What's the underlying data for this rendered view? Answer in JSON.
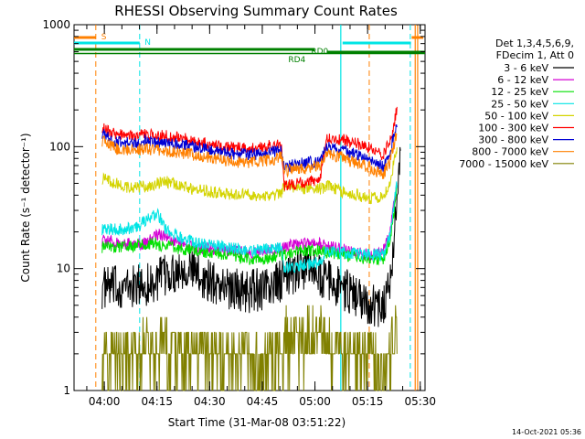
{
  "chart_data": {
    "type": "line",
    "title": "RHESSI Observing Summary Count Rates",
    "xlabel": "Start Time (31-Mar-08 03:51:22)",
    "ylabel": "Count Rate (s⁻¹ detector⁻¹)",
    "yscale": "log",
    "ylim": [
      1,
      1000
    ],
    "xlim_minutes": [
      0,
      100
    ],
    "x_ticks": [
      "04:00",
      "04:15",
      "04:30",
      "04:45",
      "05:00",
      "05:15",
      "05:30"
    ],
    "y_ticks": [
      "1",
      "10",
      "100",
      "1000"
    ],
    "legend_header": [
      "Det 1,3,4,5,6,9,",
      "FDecim 1, Att 0"
    ],
    "legend_position": "right",
    "series": [
      {
        "name": "3 - 6 keV",
        "color": "#000000",
        "points": [
          [
            8,
            7
          ],
          [
            15,
            7
          ],
          [
            22,
            7.5
          ],
          [
            27,
            9
          ],
          [
            32,
            10.5
          ],
          [
            38,
            8
          ],
          [
            44,
            7
          ],
          [
            50,
            6.5
          ],
          [
            56,
            7
          ],
          [
            62,
            9
          ],
          [
            67,
            10.5
          ],
          [
            72,
            8
          ],
          [
            78,
            6.5
          ],
          [
            84,
            5
          ],
          [
            88,
            5
          ],
          [
            90,
            8
          ],
          [
            92,
            30
          ],
          [
            93,
            120
          ]
        ]
      },
      {
        "name": "6 - 12 keV",
        "color": "#d400d4",
        "points": [
          [
            8,
            17
          ],
          [
            15,
            16
          ],
          [
            20,
            16
          ],
          [
            24,
            19
          ],
          [
            28,
            17
          ],
          [
            34,
            15
          ],
          [
            44,
            14
          ],
          [
            50,
            13.5
          ],
          [
            56,
            14
          ],
          [
            60,
            15
          ],
          [
            64,
            16
          ],
          [
            70,
            16
          ],
          [
            76,
            14.5
          ],
          [
            84,
            13
          ],
          [
            88,
            13.5
          ],
          [
            90,
            20
          ],
          [
            92,
            50
          ]
        ]
      },
      {
        "name": "12 - 25 keV",
        "color": "#00e000",
        "points": [
          [
            8,
            15
          ],
          [
            15,
            15
          ],
          [
            22,
            16
          ],
          [
            28,
            15
          ],
          [
            34,
            14
          ],
          [
            44,
            13
          ],
          [
            50,
            12
          ],
          [
            56,
            12
          ],
          [
            60,
            13
          ],
          [
            64,
            14
          ],
          [
            70,
            14
          ],
          [
            76,
            13
          ],
          [
            84,
            12
          ],
          [
            88,
            12
          ],
          [
            90,
            17
          ],
          [
            92,
            45
          ]
        ]
      },
      {
        "name": "25 - 50 keV",
        "color": "#00e5e5",
        "points": [
          [
            8,
            21
          ],
          [
            14,
            21
          ],
          [
            18,
            22
          ],
          [
            22,
            27
          ],
          [
            24,
            28
          ],
          [
            26,
            21
          ],
          [
            30,
            18
          ],
          [
            36,
            16
          ],
          [
            44,
            15
          ],
          [
            50,
            14
          ],
          [
            56,
            14.5
          ],
          [
            59,
            15
          ],
          [
            60,
            10
          ],
          [
            64,
            10.5
          ],
          [
            68,
            11
          ],
          [
            70,
            11
          ],
          [
            72,
            14
          ],
          [
            76,
            13.5
          ],
          [
            84,
            13
          ],
          [
            88,
            13
          ],
          [
            90,
            18
          ],
          [
            92,
            50
          ]
        ]
      },
      {
        "name": "50 - 100 keV",
        "color": "#d4d400",
        "points": [
          [
            8,
            55
          ],
          [
            12,
            50
          ],
          [
            16,
            46
          ],
          [
            20,
            47
          ],
          [
            26,
            52
          ],
          [
            32,
            46
          ],
          [
            38,
            43
          ],
          [
            44,
            41
          ],
          [
            50,
            40
          ],
          [
            56,
            40
          ],
          [
            59,
            41
          ],
          [
            60,
            48
          ],
          [
            64,
            46
          ],
          [
            70,
            45
          ],
          [
            73,
            48
          ],
          [
            76,
            43
          ],
          [
            84,
            38
          ],
          [
            88,
            38
          ],
          [
            90,
            50
          ],
          [
            92,
            100
          ]
        ]
      },
      {
        "name": "100 - 300 keV",
        "color": "#ff0000",
        "points": [
          [
            8,
            145
          ],
          [
            12,
            125
          ],
          [
            16,
            122
          ],
          [
            20,
            125
          ],
          [
            26,
            122
          ],
          [
            32,
            115
          ],
          [
            38,
            105
          ],
          [
            44,
            98
          ],
          [
            50,
            96
          ],
          [
            56,
            102
          ],
          [
            59,
            105
          ],
          [
            60,
            48
          ],
          [
            64,
            50
          ],
          [
            68,
            52
          ],
          [
            70,
            53
          ],
          [
            72,
            120
          ],
          [
            76,
            115
          ],
          [
            84,
            100
          ],
          [
            88,
            85
          ],
          [
            90,
            110
          ],
          [
            92,
            200
          ]
        ]
      },
      {
        "name": "300 - 800 keV",
        "color": "#0000d4",
        "points": [
          [
            8,
            130
          ],
          [
            12,
            110
          ],
          [
            16,
            108
          ],
          [
            20,
            112
          ],
          [
            26,
            108
          ],
          [
            32,
            102
          ],
          [
            38,
            95
          ],
          [
            44,
            88
          ],
          [
            50,
            86
          ],
          [
            56,
            90
          ],
          [
            59,
            94
          ],
          [
            60,
            68
          ],
          [
            64,
            72
          ],
          [
            68,
            75
          ],
          [
            70,
            76
          ],
          [
            72,
            98
          ],
          [
            76,
            95
          ],
          [
            84,
            80
          ],
          [
            88,
            68
          ],
          [
            90,
            90
          ],
          [
            92,
            160
          ]
        ]
      },
      {
        "name": "800 - 7000 keV",
        "color": "#ff8000",
        "points": [
          [
            8,
            112
          ],
          [
            12,
            96
          ],
          [
            16,
            93
          ],
          [
            20,
            96
          ],
          [
            26,
            93
          ],
          [
            32,
            88
          ],
          [
            38,
            82
          ],
          [
            44,
            76
          ],
          [
            50,
            74
          ],
          [
            56,
            78
          ],
          [
            59,
            82
          ],
          [
            60,
            63
          ],
          [
            64,
            66
          ],
          [
            68,
            68
          ],
          [
            70,
            70
          ],
          [
            72,
            85
          ],
          [
            76,
            82
          ],
          [
            84,
            68
          ],
          [
            88,
            58
          ],
          [
            90,
            75
          ],
          [
            92,
            130
          ]
        ]
      },
      {
        "name": "7000 - 15000 keV",
        "color": "#808000",
        "points": [
          [
            8,
            2
          ],
          [
            16,
            2
          ],
          [
            20,
            2.5
          ],
          [
            26,
            2.8
          ],
          [
            32,
            2.2
          ],
          [
            38,
            2
          ],
          [
            44,
            2
          ],
          [
            50,
            2
          ],
          [
            56,
            2
          ],
          [
            59,
            2
          ],
          [
            60,
            3
          ],
          [
            64,
            3.2
          ],
          [
            68,
            3.3
          ],
          [
            70,
            3.3
          ],
          [
            72,
            2.5
          ],
          [
            76,
            2.2
          ],
          [
            84,
            2
          ],
          [
            88,
            1.5
          ],
          [
            90,
            2
          ],
          [
            92,
            5
          ]
        ]
      }
    ],
    "annotations": [
      {
        "text": "S",
        "color": "#ff8000"
      },
      {
        "text": "N",
        "color": "#00e5e5"
      },
      {
        "text": "RD0",
        "color": "#008000"
      },
      {
        "text": "RD4",
        "color": "#008000"
      }
    ],
    "footer": "14-Oct-2021 05:36"
  }
}
